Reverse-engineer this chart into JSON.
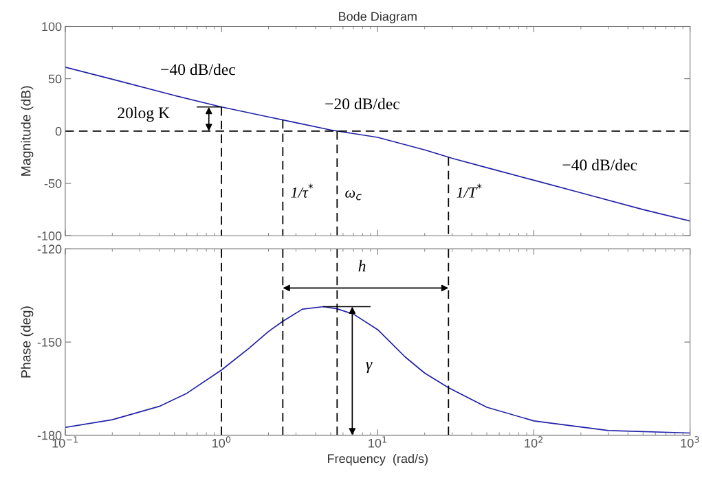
{
  "chart_data": [
    {
      "type": "line",
      "title": "Bode Diagram",
      "ylabel": "Magnitude (dB)",
      "x": [
        0.1,
        0.2,
        0.5,
        1,
        2,
        3,
        5,
        10,
        20,
        30,
        50,
        100,
        200,
        500,
        1000
      ],
      "series": [
        {
          "color": "#2020a8",
          "values": [
            61,
            49.5,
            34,
            23,
            13.5,
            8,
            1,
            -6,
            -18,
            -26,
            -35,
            -47,
            -59,
            -75,
            -86
          ]
        }
      ],
      "log": "x",
      "xlim": [
        0.1,
        1000
      ],
      "xticks": [
        0.1,
        1,
        10,
        100,
        1000
      ],
      "ylim": [
        -100,
        100
      ],
      "yticks": [
        -100,
        -50,
        0,
        50,
        100
      ],
      "tick_labels": "y",
      "grid": false,
      "legend": false,
      "ref_lines": [
        {
          "axis": "y",
          "value": 0,
          "line_style": "dashed",
          "color": "#000000"
        },
        {
          "axis": "x",
          "value": 1,
          "line_style": "dashed",
          "color": "#000000"
        },
        {
          "axis": "x",
          "value": 2.47,
          "label": "1/τ$^{*}$",
          "line_style": "dashed",
          "color": "#000000"
        },
        {
          "axis": "x",
          "value": 5.5,
          "label": "ω$_{c}$",
          "line_style": "dashed",
          "color": "#000000"
        },
        {
          "axis": "x",
          "value": 28.4,
          "label": "1/T$^{*}$",
          "line_style": "dashed",
          "color": "#000000"
        }
      ],
      "annotations": [
        "−40 dB/dec",
        "−20 dB/dec",
        "−40 dB/dec",
        "20log K"
      ]
    },
    {
      "type": "line",
      "ylabel": "Phase (deg)",
      "xlabel": "Frequency  (rad/s)",
      "x": [
        0.1,
        0.2,
        0.4,
        0.6,
        1,
        1.5,
        2,
        2.47,
        3.3,
        4.5,
        5.5,
        7,
        10,
        15,
        20,
        28.4,
        50,
        100,
        300,
        1000
      ],
      "series": [
        {
          "color": "#2020a8",
          "values": [
            -177.5,
            -175,
            -170.7,
            -166.5,
            -159,
            -152,
            -146.6,
            -143.3,
            -139.4,
            -138.6,
            -139.3,
            -141,
            -146,
            -154.8,
            -160,
            -164.7,
            -171,
            -175.4,
            -178.5,
            -179.3
          ]
        }
      ],
      "log": "x",
      "xlim": [
        0.1,
        1000
      ],
      "xticks": [
        {
          "value": 0.1,
          "label": "10$^{−1}$"
        },
        {
          "value": 1,
          "label": "10$^{0}$"
        },
        {
          "value": 10,
          "label": "10$^{1}$"
        },
        {
          "value": 100,
          "label": "10$^{2}$"
        },
        {
          "value": 1000,
          "label": "10$^{3}$"
        }
      ],
      "ylim": [
        -180,
        -120
      ],
      "yticks": [
        -180,
        -150,
        -120
      ],
      "grid": false,
      "legend": false,
      "ref_lines": [
        {
          "axis": "x",
          "value": 1,
          "line_style": "dashed",
          "color": "#000000"
        },
        {
          "axis": "x",
          "value": 2.47,
          "line_style": "dashed",
          "color": "#000000"
        },
        {
          "axis": "x",
          "value": 5.5,
          "line_style": "dashed",
          "color": "#000000"
        },
        {
          "axis": "x",
          "value": 28.4,
          "line_style": "dashed",
          "color": "#000000"
        }
      ],
      "annotations": [
        "h",
        "γ"
      ]
    }
  ]
}
